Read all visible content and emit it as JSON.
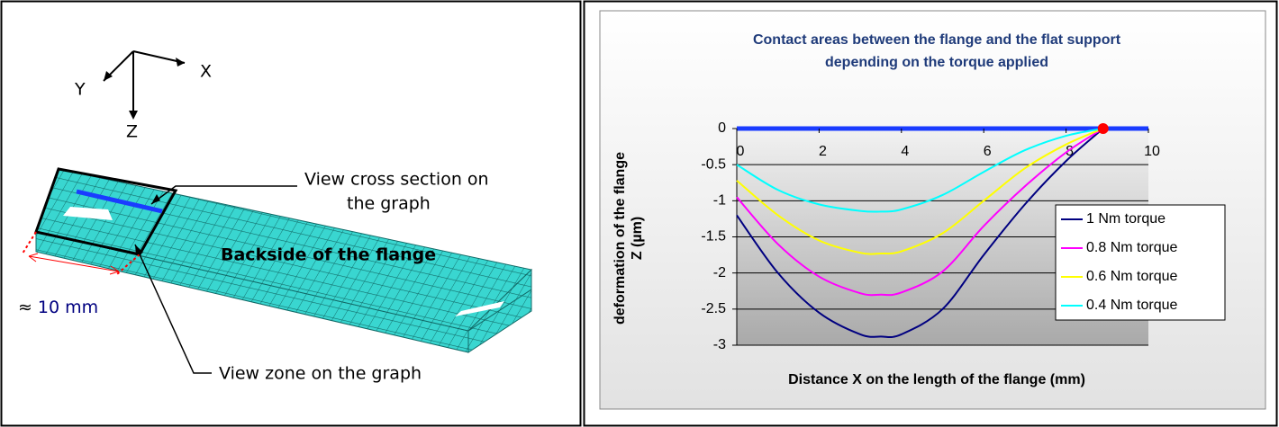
{
  "diagram": {
    "axis_x": "X",
    "axis_y": "Y",
    "axis_z": "Z",
    "callout_cross_section": [
      "View cross section on",
      "the graph"
    ],
    "backside_label": "Backside of the flange",
    "approx_symbol": "≈",
    "dimension": "10 mm",
    "callout_zone": "View zone on the graph"
  },
  "chart_data": {
    "type": "line",
    "title": [
      "Contact areas between the flange and the flat support",
      "depending on the torque applied"
    ],
    "xlabel": "Distance X on the length of the flange (mm)",
    "ylabel": [
      "deformation of the flange",
      "Z (µm)"
    ],
    "x": [
      0,
      1,
      2,
      3,
      3.5,
      4,
      5,
      6,
      7,
      8,
      8.9
    ],
    "series": [
      {
        "name": "1 Nm torque",
        "color": "#000080",
        "values": [
          -1.2,
          -2.0,
          -2.55,
          -2.85,
          -2.88,
          -2.85,
          -2.5,
          -1.75,
          -1.05,
          -0.45,
          0
        ]
      },
      {
        "name": "0.8 Nm torque",
        "color": "#ff00ff",
        "values": [
          -0.95,
          -1.6,
          -2.05,
          -2.28,
          -2.3,
          -2.27,
          -1.98,
          -1.35,
          -0.8,
          -0.33,
          0
        ]
      },
      {
        "name": "0.6 Nm torque",
        "color": "#ffff00",
        "values": [
          -0.72,
          -1.2,
          -1.55,
          -1.72,
          -1.73,
          -1.7,
          -1.45,
          -1.0,
          -0.55,
          -0.22,
          0
        ]
      },
      {
        "name": "0.4 Nm torque",
        "color": "#00ffff",
        "values": [
          -0.5,
          -0.85,
          -1.05,
          -1.14,
          -1.15,
          -1.12,
          -0.92,
          -0.6,
          -0.3,
          -0.1,
          0
        ]
      }
    ],
    "contact_point": {
      "x": 8.9,
      "y": 0,
      "color": "#ff0000"
    },
    "xlim": [
      0,
      10
    ],
    "xticks": [
      0,
      2,
      4,
      6,
      8,
      10
    ],
    "ylim": [
      -3,
      0
    ],
    "yticks": [
      0,
      -0.5,
      -1,
      -1.5,
      -2,
      -2.5,
      -3
    ],
    "grid": true,
    "legend": "right"
  }
}
